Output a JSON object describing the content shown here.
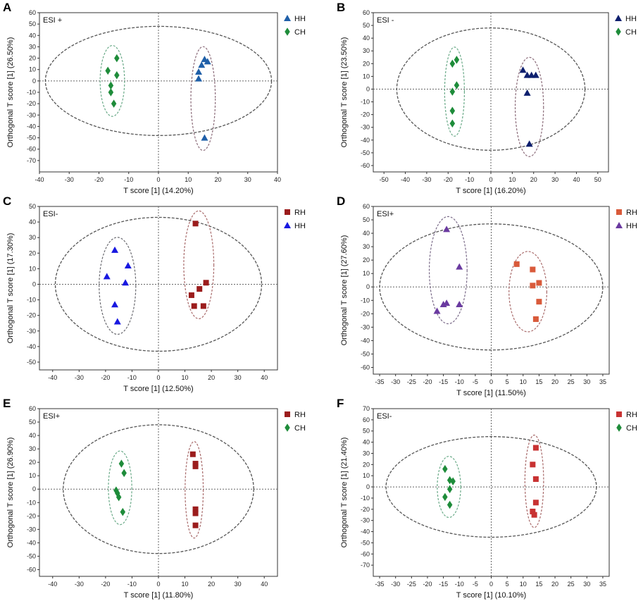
{
  "chart_data": [
    {
      "type": "scatter",
      "panel_label": "A",
      "mode": "ESI +",
      "xlabel": "T score [1] (14.20%)",
      "ylabel": "Orthogonal T score [1] (26.50%)",
      "xlim": [
        -40,
        40
      ],
      "ylim": [
        -80,
        60
      ],
      "xticks": [
        -40,
        -30,
        -20,
        -10,
        0,
        10,
        20,
        30,
        40
      ],
      "yticks": [
        60,
        50,
        40,
        30,
        20,
        10,
        0,
        -10,
        -20,
        -30,
        -40,
        -50,
        -60,
        -70
      ],
      "main_ellipse": {
        "cx": 0,
        "cy": 0,
        "rx": 38,
        "ry": 48
      },
      "legend_position": "top-right",
      "series": [
        {
          "name": "HH",
          "marker": "triangle",
          "color": "#1f5fa8",
          "ellipse_color": "#8a6a78",
          "points": [
            [
              13.5,
              2
            ],
            [
              13.5,
              8
            ],
            [
              14.5,
              14
            ],
            [
              15.5,
              19
            ],
            [
              16.5,
              17
            ],
            [
              15.5,
              -50
            ]
          ]
        },
        {
          "name": "CH",
          "marker": "diamond",
          "color": "#1e8c3a",
          "ellipse_color": "#6aaa88",
          "points": [
            [
              -17,
              9
            ],
            [
              -14,
              20
            ],
            [
              -14,
              5
            ],
            [
              -16,
              -4
            ],
            [
              -16,
              -10
            ],
            [
              -15,
              -20
            ]
          ]
        }
      ]
    },
    {
      "type": "scatter",
      "panel_label": "B",
      "mode": "ESI -",
      "xlabel": "T score [1] (16.20%)",
      "ylabel": "Orthogonal T score [1] (23.50%)",
      "xlim": [
        -55,
        55
      ],
      "ylim": [
        -65,
        60
      ],
      "xticks": [
        -50,
        -40,
        -30,
        -20,
        -10,
        0,
        10,
        20,
        30,
        40,
        50
      ],
      "yticks": [
        60,
        50,
        40,
        30,
        20,
        10,
        0,
        -10,
        -20,
        -30,
        -40,
        -50,
        -60
      ],
      "main_ellipse": {
        "cx": 0,
        "cy": 0,
        "rx": 44,
        "ry": 48
      },
      "legend_position": "top-right",
      "series": [
        {
          "name": "HH",
          "marker": "triangle",
          "color": "#0d1f6e",
          "ellipse_color": "#8a6a78",
          "points": [
            [
              15,
              15
            ],
            [
              17,
              11
            ],
            [
              19,
              11
            ],
            [
              21,
              11
            ],
            [
              17,
              -3
            ],
            [
              18,
              -43
            ]
          ]
        },
        {
          "name": "CH",
          "marker": "diamond",
          "color": "#1e8c3a",
          "ellipse_color": "#6aaa88",
          "points": [
            [
              -18,
              20
            ],
            [
              -16,
              23
            ],
            [
              -16,
              3
            ],
            [
              -18,
              -2
            ],
            [
              -18,
              -17
            ],
            [
              -18,
              -27
            ]
          ]
        }
      ]
    },
    {
      "type": "scatter",
      "panel_label": "C",
      "mode": "ESI-",
      "xlabel": "T score [1] (12.50%)",
      "ylabel": "Orthogonal T score [1] (17.30%)",
      "xlim": [
        -45,
        45
      ],
      "ylim": [
        -55,
        50
      ],
      "xticks": [
        -40,
        -30,
        -20,
        -10,
        0,
        10,
        20,
        30,
        40
      ],
      "yticks": [
        50,
        40,
        30,
        20,
        10,
        0,
        -10,
        -20,
        -30,
        -40,
        -50
      ],
      "main_ellipse": {
        "cx": 0,
        "cy": 0,
        "rx": 39,
        "ry": 43
      },
      "legend_position": "top-right",
      "series": [
        {
          "name": "RH",
          "marker": "square",
          "color": "#9b1c1c",
          "ellipse_color": "#a86a6a",
          "points": [
            [
              14,
              39
            ],
            [
              15.5,
              -3
            ],
            [
              18,
              1
            ],
            [
              12.5,
              -7
            ],
            [
              13.5,
              -14
            ],
            [
              17,
              -14
            ]
          ]
        },
        {
          "name": "HH",
          "marker": "triangle",
          "color": "#1818e0",
          "ellipse_color": "#6a6a70",
          "points": [
            [
              -16.5,
              22
            ],
            [
              -11.5,
              12
            ],
            [
              -19.5,
              5
            ],
            [
              -12.5,
              1
            ],
            [
              -16.5,
              -13
            ],
            [
              -15.5,
              -24
            ]
          ]
        }
      ]
    },
    {
      "type": "scatter",
      "panel_label": "D",
      "mode": "ESI+",
      "xlabel": "T score [1] (11.50%)",
      "ylabel": "Orthogonal T score [1] (27.60%)",
      "xlim": [
        -37,
        37
      ],
      "ylim": [
        -65,
        60
      ],
      "xticks": [
        -35,
        -30,
        -25,
        -20,
        -15,
        -10,
        -5,
        0,
        5,
        10,
        15,
        20,
        25,
        30,
        35
      ],
      "yticks": [
        60,
        50,
        40,
        30,
        20,
        10,
        0,
        -10,
        -20,
        -30,
        -40,
        -50,
        -60
      ],
      "main_ellipse": {
        "cx": 0,
        "cy": 0,
        "rx": 35,
        "ry": 47
      },
      "legend_position": "top-right",
      "series": [
        {
          "name": "RH",
          "marker": "square",
          "color": "#d95a3a",
          "ellipse_color": "#a86a6a",
          "points": [
            [
              8,
              17
            ],
            [
              13,
              13
            ],
            [
              15,
              3
            ],
            [
              13,
              1
            ],
            [
              15,
              -11
            ],
            [
              14,
              -24
            ]
          ]
        },
        {
          "name": "HH",
          "marker": "triangle",
          "color": "#6a3aa0",
          "ellipse_color": "#7a6a88",
          "points": [
            [
              -14,
              43
            ],
            [
              -10,
              15
            ],
            [
              -14,
              -12
            ],
            [
              -15,
              -13
            ],
            [
              -17,
              -18
            ],
            [
              -10,
              -13
            ]
          ]
        }
      ]
    },
    {
      "type": "scatter",
      "panel_label": "E",
      "mode": "ESI+",
      "xlabel": "T score [1] (11.80%)",
      "ylabel": "Orthogonal T score [1] (26.90%)",
      "xlim": [
        -45,
        45
      ],
      "ylim": [
        -65,
        60
      ],
      "xticks": [
        -40,
        -30,
        -20,
        -10,
        0,
        10,
        20,
        30,
        40
      ],
      "yticks": [
        60,
        50,
        40,
        30,
        20,
        10,
        0,
        -10,
        -20,
        -30,
        -40,
        -50,
        -60
      ],
      "main_ellipse": {
        "cx": 0,
        "cy": 0,
        "rx": 36,
        "ry": 48
      },
      "legend_position": "top-right",
      "series": [
        {
          "name": "RH",
          "marker": "square",
          "color": "#9b1c1c",
          "ellipse_color": "#a86a6a",
          "points": [
            [
              13,
              26
            ],
            [
              14,
              19
            ],
            [
              14,
              17
            ],
            [
              14,
              -15
            ],
            [
              14,
              -18
            ],
            [
              14,
              -27
            ]
          ]
        },
        {
          "name": "CH",
          "marker": "diamond",
          "color": "#1e8c3a",
          "ellipse_color": "#6aaa88",
          "points": [
            [
              -14,
              19
            ],
            [
              -13,
              12
            ],
            [
              -16,
              -1
            ],
            [
              -15.5,
              -3
            ],
            [
              -15,
              -6
            ],
            [
              -13.5,
              -17
            ]
          ]
        }
      ]
    },
    {
      "type": "scatter",
      "panel_label": "F",
      "mode": "ESI-",
      "xlabel": "T score [1] (10.10%)",
      "ylabel": "Orthogonal T score [1] (21.40%)",
      "xlim": [
        -37,
        37
      ],
      "ylim": [
        -80,
        70
      ],
      "xticks": [
        -35,
        -30,
        -25,
        -20,
        -15,
        -10,
        -5,
        0,
        5,
        10,
        15,
        20,
        25,
        30,
        35
      ],
      "yticks": [
        70,
        60,
        50,
        40,
        30,
        20,
        10,
        0,
        -10,
        -20,
        -30,
        -40,
        -50,
        -60,
        -70
      ],
      "main_ellipse": {
        "cx": 0,
        "cy": 0,
        "rx": 33,
        "ry": 45
      },
      "legend_position": "top-right",
      "series": [
        {
          "name": "RH",
          "marker": "square",
          "color": "#c83232",
          "ellipse_color": "#a86a6a",
          "points": [
            [
              14,
              35
            ],
            [
              13,
              20
            ],
            [
              14,
              7
            ],
            [
              14,
              -14
            ],
            [
              13,
              -22
            ],
            [
              13.5,
              -25
            ]
          ]
        },
        {
          "name": "CH",
          "marker": "diamond",
          "color": "#1e8c3a",
          "ellipse_color": "#6aaa88",
          "points": [
            [
              -14.5,
              16
            ],
            [
              -13,
              6
            ],
            [
              -12,
              5
            ],
            [
              -13,
              -2
            ],
            [
              -14.5,
              -9
            ],
            [
              -13,
              -16
            ]
          ]
        }
      ]
    }
  ]
}
